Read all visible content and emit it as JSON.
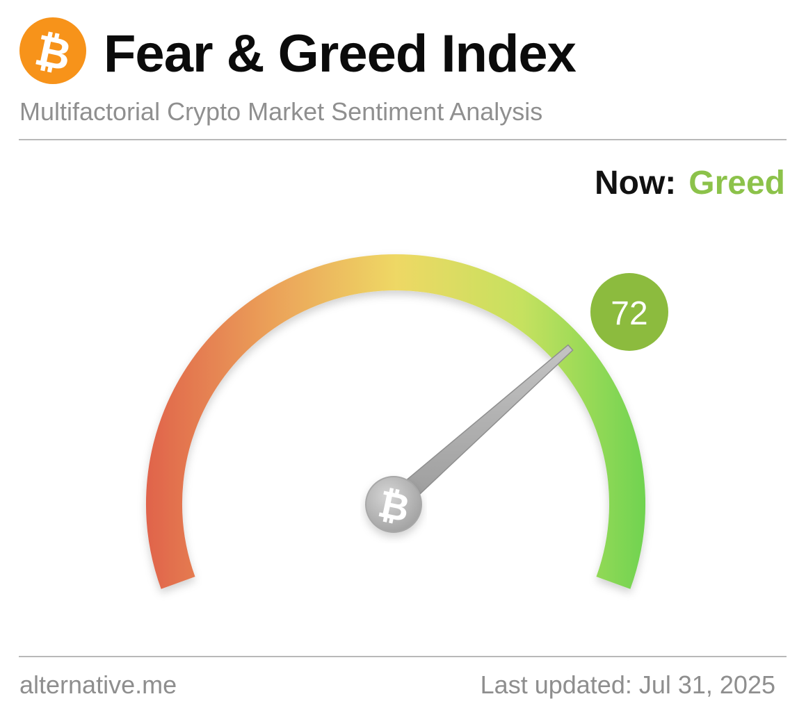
{
  "header": {
    "title": "Fear & Greed Index",
    "subtitle": "Multifactorial Crypto Market Sentiment Analysis",
    "logo_icon": "bitcoin-icon"
  },
  "status": {
    "now_label": "Now:",
    "classification": "Greed",
    "classification_color": "#8cc24a"
  },
  "gauge": {
    "value": 72,
    "value_text": "72",
    "min": 0,
    "max": 100,
    "badge_color": "#8cbb3e",
    "gradient_colors": [
      "#e0634b",
      "#eba159",
      "#eed865",
      "#c6e15f",
      "#6fd350"
    ],
    "hub_icon": "bitcoin-icon"
  },
  "footer": {
    "source": "alternative.me",
    "last_updated": "Last updated: Jul 31, 2025"
  }
}
